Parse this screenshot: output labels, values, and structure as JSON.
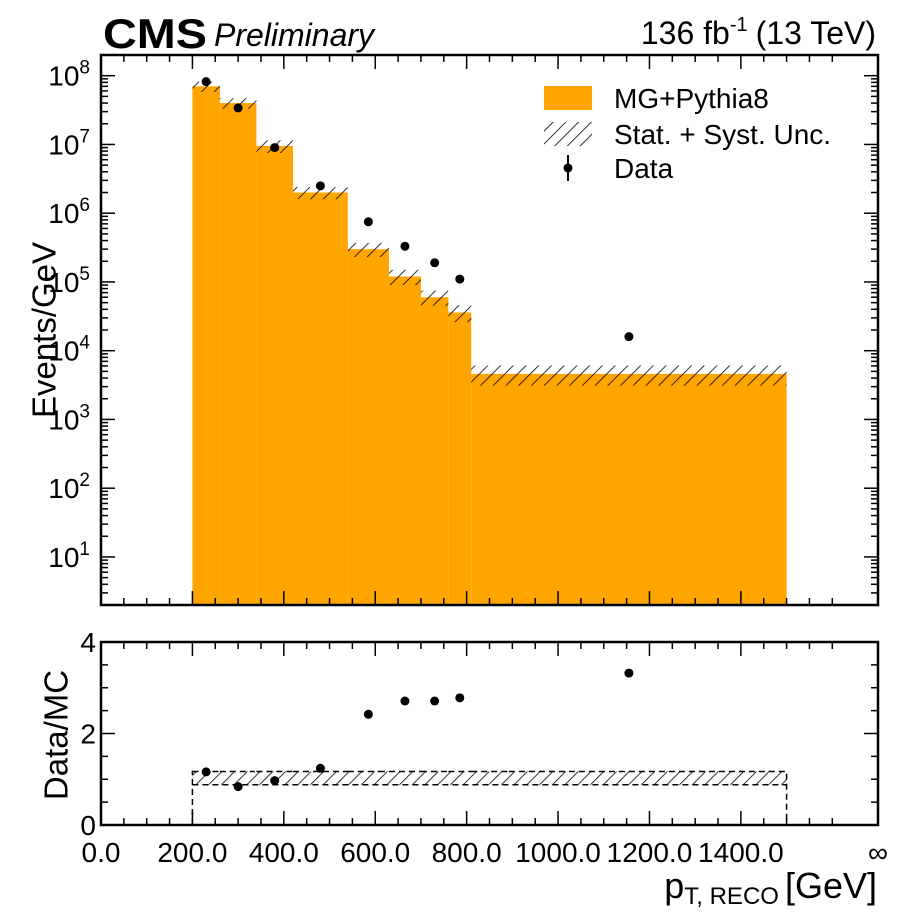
{
  "header": {
    "experiment": "CMS",
    "status": "Preliminary",
    "lumi_value": "136 fb",
    "lumi_exp": "-1",
    "energy": "(13 TeV)"
  },
  "legend": {
    "mc": "MG+Pythia8",
    "unc": "Stat. + Syst. Unc.",
    "data": "Data",
    "placement": "top-right"
  },
  "colors": {
    "mc_fill": "#ffa500",
    "data_marker": "#000000"
  },
  "chart_data": [
    {
      "type": "bar",
      "name": "main",
      "ylabel": "Events/GeV",
      "yscale": "log",
      "xlim": [
        0,
        1700
      ],
      "ylim": [
        2,
        200000000.0
      ],
      "bin_edges": [
        200,
        260,
        340,
        420,
        540,
        630,
        700,
        760,
        810,
        1500
      ],
      "mc_values": [
        70000000.0,
        40000000.0,
        9500000.0,
        2000000.0,
        300000.0,
        120000.0,
        60000.0,
        36000.0,
        4600.0
      ],
      "mc_unc": [
        12000000.0,
        7000000.0,
        2000000.0,
        400000.0,
        70000.0,
        30000.0,
        15000.0,
        10000.0,
        1500.0
      ],
      "data_x": [
        230,
        300,
        380,
        480,
        585,
        665,
        730,
        785,
        1155
      ],
      "data_y": [
        82000000.0,
        34000000.0,
        9000000.0,
        2500000.0,
        750000.0,
        330000.0,
        190000.0,
        110000.0,
        16000.0
      ],
      "yticks": [
        {
          "value": 10,
          "base": "10",
          "exp": "1"
        },
        {
          "value": 100,
          "base": "10",
          "exp": "2"
        },
        {
          "value": 1000,
          "base": "10",
          "exp": "3"
        },
        {
          "value": 10000,
          "base": "10",
          "exp": "4"
        },
        {
          "value": 100000,
          "base": "10",
          "exp": "5"
        },
        {
          "value": 1000000,
          "base": "10",
          "exp": "6"
        },
        {
          "value": 10000000,
          "base": "10",
          "exp": "7"
        },
        {
          "value": 100000000,
          "base": "10",
          "exp": "8"
        }
      ],
      "grid": false
    },
    {
      "type": "scatter",
      "name": "ratio",
      "ylabel": "Data/MC",
      "xlabel_main": "p",
      "xlabel_sub": "T, RECO",
      "xlabel_unit": "[GeV]",
      "xlim": [
        0,
        1700
      ],
      "ylim": [
        0,
        4
      ],
      "yticks": [
        0,
        2,
        4
      ],
      "xtick_values": [
        0,
        200,
        400,
        600,
        800,
        1000,
        1200,
        1400,
        1700
      ],
      "xtick_labels": [
        "0.0",
        "200.0",
        "400.0",
        "600.0",
        "800.0",
        "1000.0",
        "1200.0",
        "1400.0",
        "∞"
      ],
      "unc_low": [
        0.88,
        0.88,
        0.88,
        0.88,
        0.88,
        0.88,
        0.88,
        0.88,
        0.88
      ],
      "unc_high": [
        1.17,
        1.17,
        1.17,
        1.17,
        1.17,
        1.17,
        1.17,
        1.17,
        1.17
      ],
      "ratio_x": [
        230,
        300,
        380,
        480,
        585,
        665,
        730,
        785,
        1155
      ],
      "ratio_y": [
        1.16,
        0.84,
        0.97,
        1.24,
        2.42,
        2.71,
        2.71,
        2.78,
        3.32
      ],
      "grid": false
    }
  ]
}
